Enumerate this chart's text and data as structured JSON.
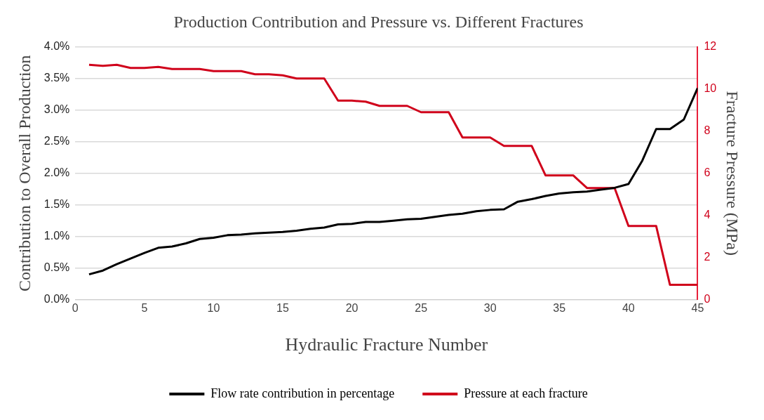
{
  "chart_data": {
    "type": "line",
    "title": "Production Contribution and Pressure vs. Different Fractures",
    "xlabel": "Hydraulic Fracture Number",
    "ylabel": "Contribution to Overall Production",
    "y2label": "Fracture Pressure (MPa)",
    "x": [
      1,
      2,
      3,
      4,
      5,
      6,
      7,
      8,
      9,
      10,
      11,
      12,
      13,
      14,
      15,
      16,
      17,
      18,
      19,
      20,
      21,
      22,
      23,
      24,
      25,
      26,
      27,
      28,
      29,
      30,
      31,
      32,
      33,
      34,
      35,
      36,
      37,
      38,
      39,
      40,
      41,
      42,
      43,
      44,
      45
    ],
    "series": [
      {
        "name": "Flow rate contribution in percentage",
        "color": "#000000",
        "values": [
          0.4,
          0.46,
          0.56,
          0.65,
          0.74,
          0.82,
          0.84,
          0.89,
          0.96,
          0.98,
          1.02,
          1.03,
          1.05,
          1.06,
          1.07,
          1.09,
          1.12,
          1.14,
          1.19,
          1.2,
          1.23,
          1.23,
          1.25,
          1.27,
          1.28,
          1.31,
          1.34,
          1.36,
          1.4,
          1.42,
          1.43,
          1.55,
          1.59,
          1.64,
          1.68,
          1.7,
          1.71,
          1.74,
          1.77,
          1.83,
          2.2,
          2.7,
          2.7,
          2.85,
          3.35
        ]
      },
      {
        "name": "Pressure at each fracture",
        "color": "#d0021b",
        "axis": "y2",
        "values": [
          11.15,
          11.1,
          11.15,
          11.0,
          11.0,
          11.05,
          10.95,
          10.95,
          10.95,
          10.85,
          10.85,
          10.85,
          10.7,
          10.7,
          10.65,
          10.5,
          10.5,
          10.5,
          9.45,
          9.45,
          9.4,
          9.2,
          9.2,
          9.2,
          8.9,
          8.9,
          8.9,
          7.7,
          7.7,
          7.7,
          7.3,
          7.3,
          7.3,
          5.9,
          5.9,
          5.9,
          5.3,
          5.3,
          5.3,
          3.5,
          3.5,
          3.5,
          0.7,
          0.7,
          0.7
        ]
      }
    ],
    "xlim": [
      0,
      45
    ],
    "xticks": [
      0,
      5,
      10,
      15,
      20,
      25,
      30,
      35,
      40,
      45
    ],
    "ylim": [
      0,
      4
    ],
    "yticks": [
      {
        "value": 0,
        "label": "0.0%"
      },
      {
        "value": 0.5,
        "label": "0.5%"
      },
      {
        "value": 1,
        "label": "1.0%"
      },
      {
        "value": 1.5,
        "label": "1.5%"
      },
      {
        "value": 2,
        "label": "2.0%"
      },
      {
        "value": 2.5,
        "label": "2.5%"
      },
      {
        "value": 3,
        "label": "3.0%"
      },
      {
        "value": 3.5,
        "label": "3.5%"
      },
      {
        "value": 4,
        "label": "4.0%"
      }
    ],
    "y2lim": [
      0,
      12
    ],
    "y2ticks": [
      0,
      2,
      4,
      6,
      8,
      10,
      12
    ],
    "grid": "y",
    "legend": "bottom",
    "marker": "none",
    "line_style": "solid"
  }
}
